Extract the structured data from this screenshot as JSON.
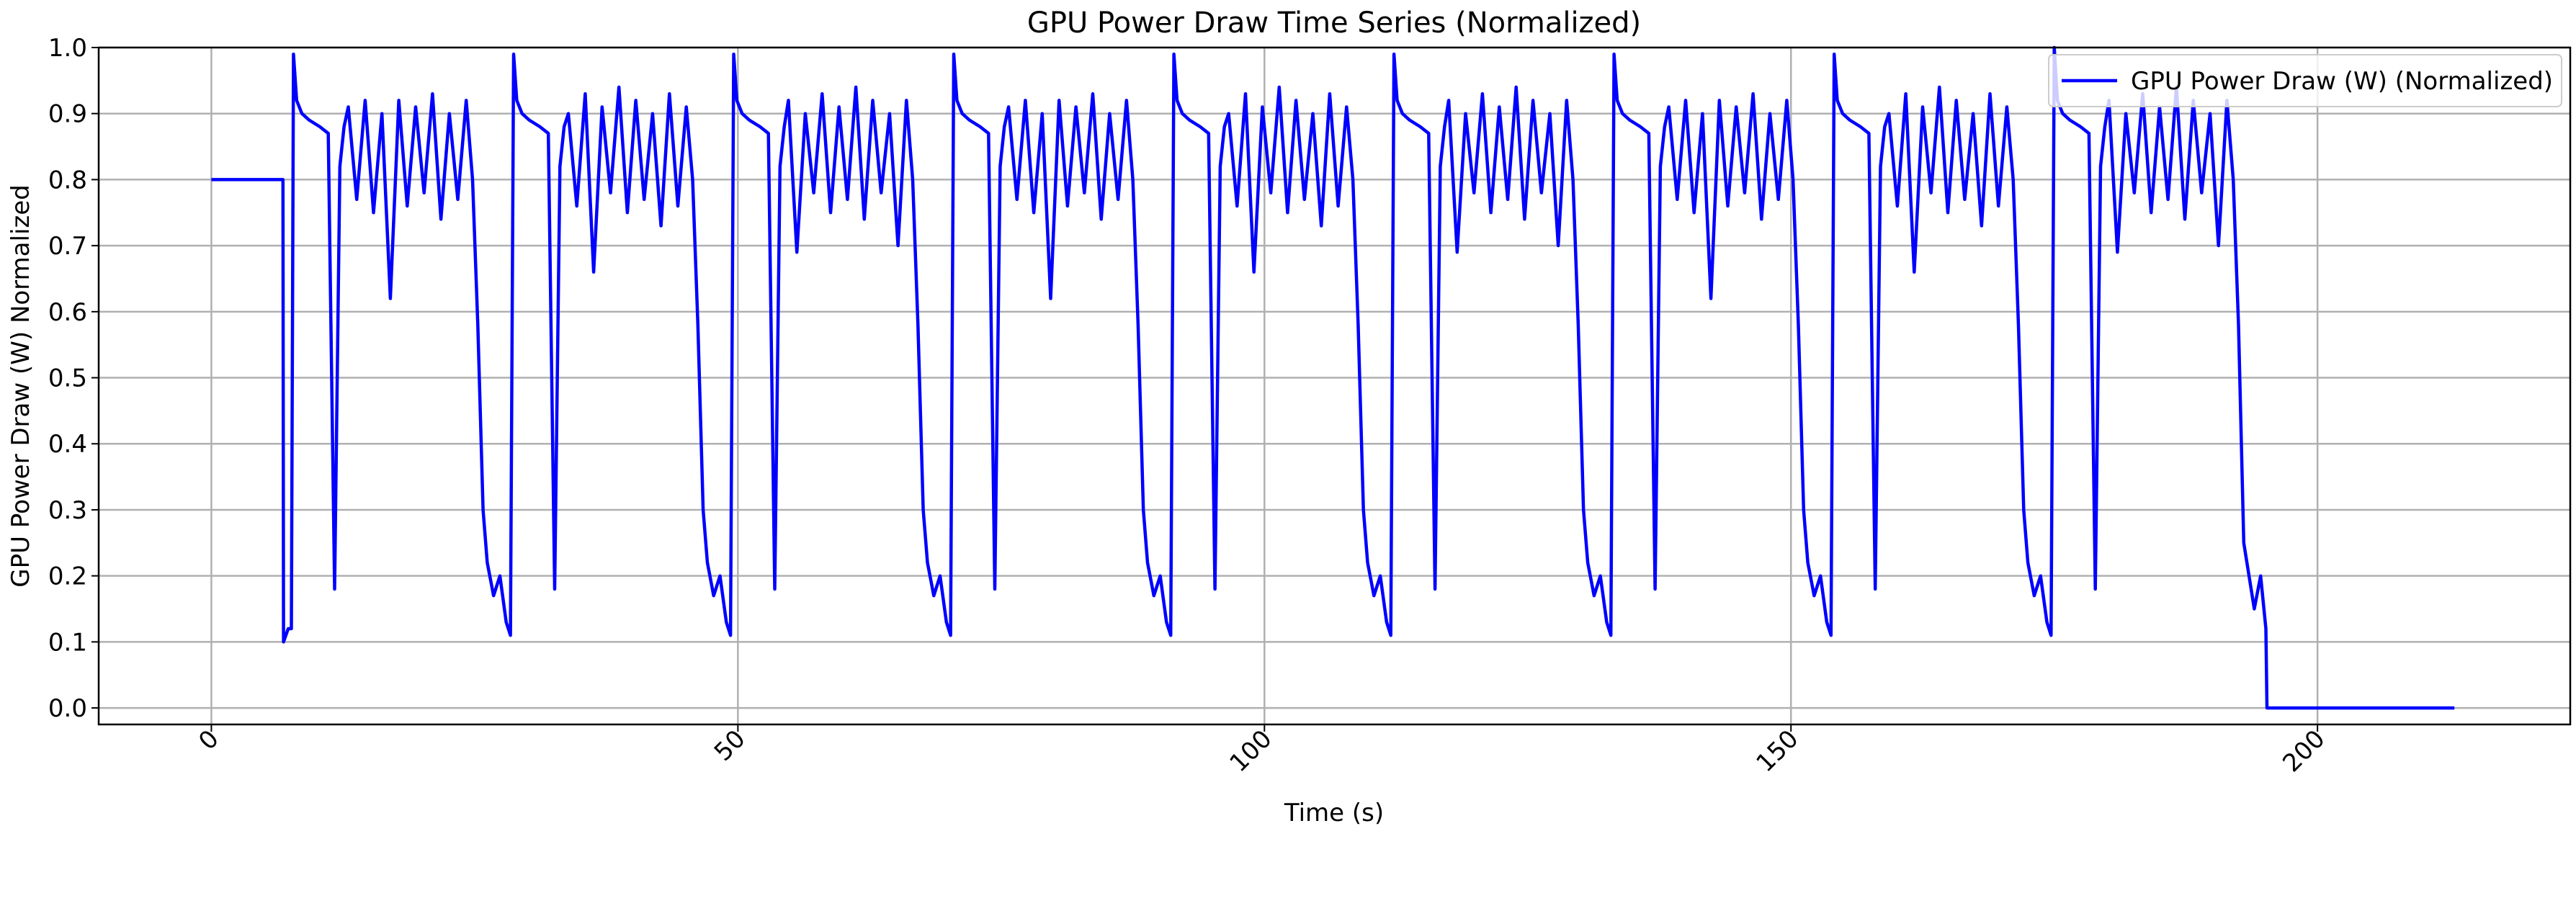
{
  "chart_data": {
    "type": "line",
    "title": "GPU Power Draw Time Series (Normalized)",
    "x_label": "Time (s)",
    "y_label": "GPU Power Draw (W) Normalized",
    "legend": "upper right",
    "grid": true,
    "xlim": [
      -10.7,
      224
    ],
    "ylim": [
      -0.025,
      1.0
    ],
    "xticks": [
      0,
      50,
      100,
      150,
      200
    ],
    "yticks": [
      {
        "value": 0,
        "label": "0.0"
      },
      0.1,
      0.2,
      0.3,
      0.4,
      0.5,
      0.6,
      0.7,
      0.8,
      0.9,
      {
        "value": 1,
        "label": "1.0"
      }
    ],
    "x": [
      0,
      6.8,
      6.85,
      7.3,
      7.6,
      7.8,
      8.1,
      8.6,
      9.3,
      10.3,
      11.1,
      11.7,
      12.2,
      12.6,
      13,
      13.8,
      14.6,
      15.4,
      16.2,
      17,
      17.8,
      18.6,
      19.4,
      20.2,
      21,
      21.8,
      22.6,
      23.4,
      24.2,
      24.8,
      25.3,
      25.8,
      26.2,
      26.8,
      27.4,
      28,
      28.4,
      28.7,
      29,
      29.5,
      30.2,
      31.2,
      32,
      32.6,
      33.1,
      33.5,
      33.9,
      34.7,
      35.5,
      36.3,
      37.1,
      37.9,
      38.7,
      39.5,
      40.3,
      41.1,
      41.9,
      42.7,
      43.5,
      44.3,
      45.1,
      45.7,
      46.2,
      46.7,
      47.1,
      47.7,
      48.3,
      48.9,
      49.3,
      49.6,
      49.9,
      50.4,
      51.1,
      52.1,
      52.9,
      53.5,
      54,
      54.4,
      54.8,
      55.6,
      56.4,
      57.2,
      58,
      58.8,
      59.6,
      60.4,
      61.2,
      62,
      62.8,
      63.6,
      64.4,
      65.2,
      66,
      66.6,
      67.1,
      67.6,
      68,
      68.6,
      69.2,
      69.8,
      70.2,
      70.5,
      70.8,
      71.3,
      72,
      73,
      73.8,
      74.4,
      74.9,
      75.3,
      75.7,
      76.5,
      77.3,
      78.1,
      78.9,
      79.7,
      80.5,
      81.3,
      82.1,
      82.9,
      83.7,
      84.5,
      85.3,
      86.1,
      86.9,
      87.5,
      88,
      88.5,
      88.9,
      89.5,
      90.1,
      90.7,
      91.1,
      91.4,
      91.7,
      92.2,
      92.9,
      93.9,
      94.7,
      95.3,
      95.8,
      96.2,
      96.6,
      97.4,
      98.2,
      99,
      99.8,
      100.6,
      101.4,
      102.2,
      103,
      103.8,
      104.6,
      105.4,
      106.2,
      107,
      107.8,
      108.4,
      108.9,
      109.4,
      109.8,
      110.4,
      111,
      111.6,
      112,
      112.3,
      112.6,
      113.1,
      113.8,
      114.8,
      115.6,
      116.2,
      116.7,
      117.1,
      117.5,
      118.3,
      119.1,
      119.9,
      120.7,
      121.5,
      122.3,
      123.1,
      123.9,
      124.7,
      125.5,
      126.3,
      127.1,
      127.9,
      128.7,
      129.3,
      129.8,
      130.3,
      130.7,
      131.3,
      131.9,
      132.5,
      132.9,
      133.2,
      133.5,
      134,
      134.7,
      135.7,
      136.5,
      137.1,
      137.6,
      138,
      138.4,
      139.2,
      140,
      140.8,
      141.6,
      142.4,
      143.2,
      144,
      144.8,
      145.6,
      146.4,
      147.2,
      148,
      148.8,
      149.6,
      150.2,
      150.7,
      151.2,
      151.6,
      152.2,
      152.8,
      153.4,
      153.8,
      154.1,
      154.4,
      154.9,
      155.6,
      156.6,
      157.4,
      158,
      158.5,
      158.9,
      159.3,
      160.1,
      160.9,
      161.7,
      162.5,
      163.3,
      164.1,
      164.9,
      165.7,
      166.5,
      167.3,
      168.1,
      168.9,
      169.7,
      170.5,
      171.1,
      171.6,
      172.1,
      172.5,
      173.1,
      173.7,
      174.3,
      174.7,
      175,
      175.3,
      175.8,
      176.5,
      177.5,
      178.3,
      178.9,
      179.4,
      179.8,
      180.2,
      181,
      181.8,
      182.6,
      183.4,
      184.2,
      185,
      185.8,
      186.6,
      187.4,
      188.2,
      189,
      189.8,
      190.6,
      191.4,
      192,
      192.5,
      193,
      193.5,
      194,
      194.6,
      195.1,
      195.2,
      213
    ],
    "series": [
      {
        "name": "GPU Power Draw (W) (Normalized)",
        "color": "#0000ff",
        "values": [
          0.8,
          0.8,
          0.1,
          0.12,
          0.12,
          0.99,
          0.92,
          0.9,
          0.89,
          0.88,
          0.87,
          0.18,
          0.82,
          0.88,
          0.91,
          0.77,
          0.92,
          0.75,
          0.9,
          0.62,
          0.92,
          0.76,
          0.91,
          0.78,
          0.93,
          0.74,
          0.9,
          0.77,
          0.92,
          0.8,
          0.58,
          0.3,
          0.22,
          0.17,
          0.2,
          0.13,
          0.11,
          0.99,
          0.92,
          0.9,
          0.89,
          0.88,
          0.87,
          0.18,
          0.82,
          0.88,
          0.9,
          0.76,
          0.93,
          0.66,
          0.91,
          0.78,
          0.94,
          0.75,
          0.92,
          0.77,
          0.9,
          0.73,
          0.93,
          0.76,
          0.91,
          0.8,
          0.58,
          0.3,
          0.22,
          0.17,
          0.2,
          0.13,
          0.11,
          0.99,
          0.92,
          0.9,
          0.89,
          0.88,
          0.87,
          0.18,
          0.82,
          0.88,
          0.92,
          0.69,
          0.9,
          0.78,
          0.93,
          0.75,
          0.91,
          0.77,
          0.94,
          0.74,
          0.92,
          0.78,
          0.9,
          0.7,
          0.92,
          0.8,
          0.58,
          0.3,
          0.22,
          0.17,
          0.2,
          0.13,
          0.11,
          0.99,
          0.92,
          0.9,
          0.89,
          0.88,
          0.87,
          0.18,
          0.82,
          0.88,
          0.91,
          0.77,
          0.92,
          0.75,
          0.9,
          0.62,
          0.92,
          0.76,
          0.91,
          0.78,
          0.93,
          0.74,
          0.9,
          0.77,
          0.92,
          0.8,
          0.58,
          0.3,
          0.22,
          0.17,
          0.2,
          0.13,
          0.11,
          0.99,
          0.92,
          0.9,
          0.89,
          0.88,
          0.87,
          0.18,
          0.82,
          0.88,
          0.9,
          0.76,
          0.93,
          0.66,
          0.91,
          0.78,
          0.94,
          0.75,
          0.92,
          0.77,
          0.9,
          0.73,
          0.93,
          0.76,
          0.91,
          0.8,
          0.58,
          0.3,
          0.22,
          0.17,
          0.2,
          0.13,
          0.11,
          0.99,
          0.92,
          0.9,
          0.89,
          0.88,
          0.87,
          0.18,
          0.82,
          0.88,
          0.92,
          0.69,
          0.9,
          0.78,
          0.93,
          0.75,
          0.91,
          0.77,
          0.94,
          0.74,
          0.92,
          0.78,
          0.9,
          0.7,
          0.92,
          0.8,
          0.58,
          0.3,
          0.22,
          0.17,
          0.2,
          0.13,
          0.11,
          0.99,
          0.92,
          0.9,
          0.89,
          0.88,
          0.87,
          0.18,
          0.82,
          0.88,
          0.91,
          0.77,
          0.92,
          0.75,
          0.9,
          0.62,
          0.92,
          0.76,
          0.91,
          0.78,
          0.93,
          0.74,
          0.9,
          0.77,
          0.92,
          0.8,
          0.58,
          0.3,
          0.22,
          0.17,
          0.2,
          0.13,
          0.11,
          0.99,
          0.92,
          0.9,
          0.89,
          0.88,
          0.87,
          0.18,
          0.82,
          0.88,
          0.9,
          0.76,
          0.93,
          0.66,
          0.91,
          0.78,
          0.94,
          0.75,
          0.92,
          0.77,
          0.9,
          0.73,
          0.93,
          0.76,
          0.91,
          0.8,
          0.58,
          0.3,
          0.22,
          0.17,
          0.2,
          0.13,
          0.11,
          1.0,
          0.92,
          0.9,
          0.89,
          0.88,
          0.87,
          0.18,
          0.82,
          0.88,
          0.92,
          0.69,
          0.9,
          0.78,
          0.93,
          0.75,
          0.91,
          0.77,
          0.94,
          0.74,
          0.92,
          0.78,
          0.9,
          0.7,
          0.92,
          0.8,
          0.58,
          0.25,
          0.2,
          0.15,
          0.2,
          0.12,
          0.0,
          0.0
        ]
      }
    ]
  }
}
